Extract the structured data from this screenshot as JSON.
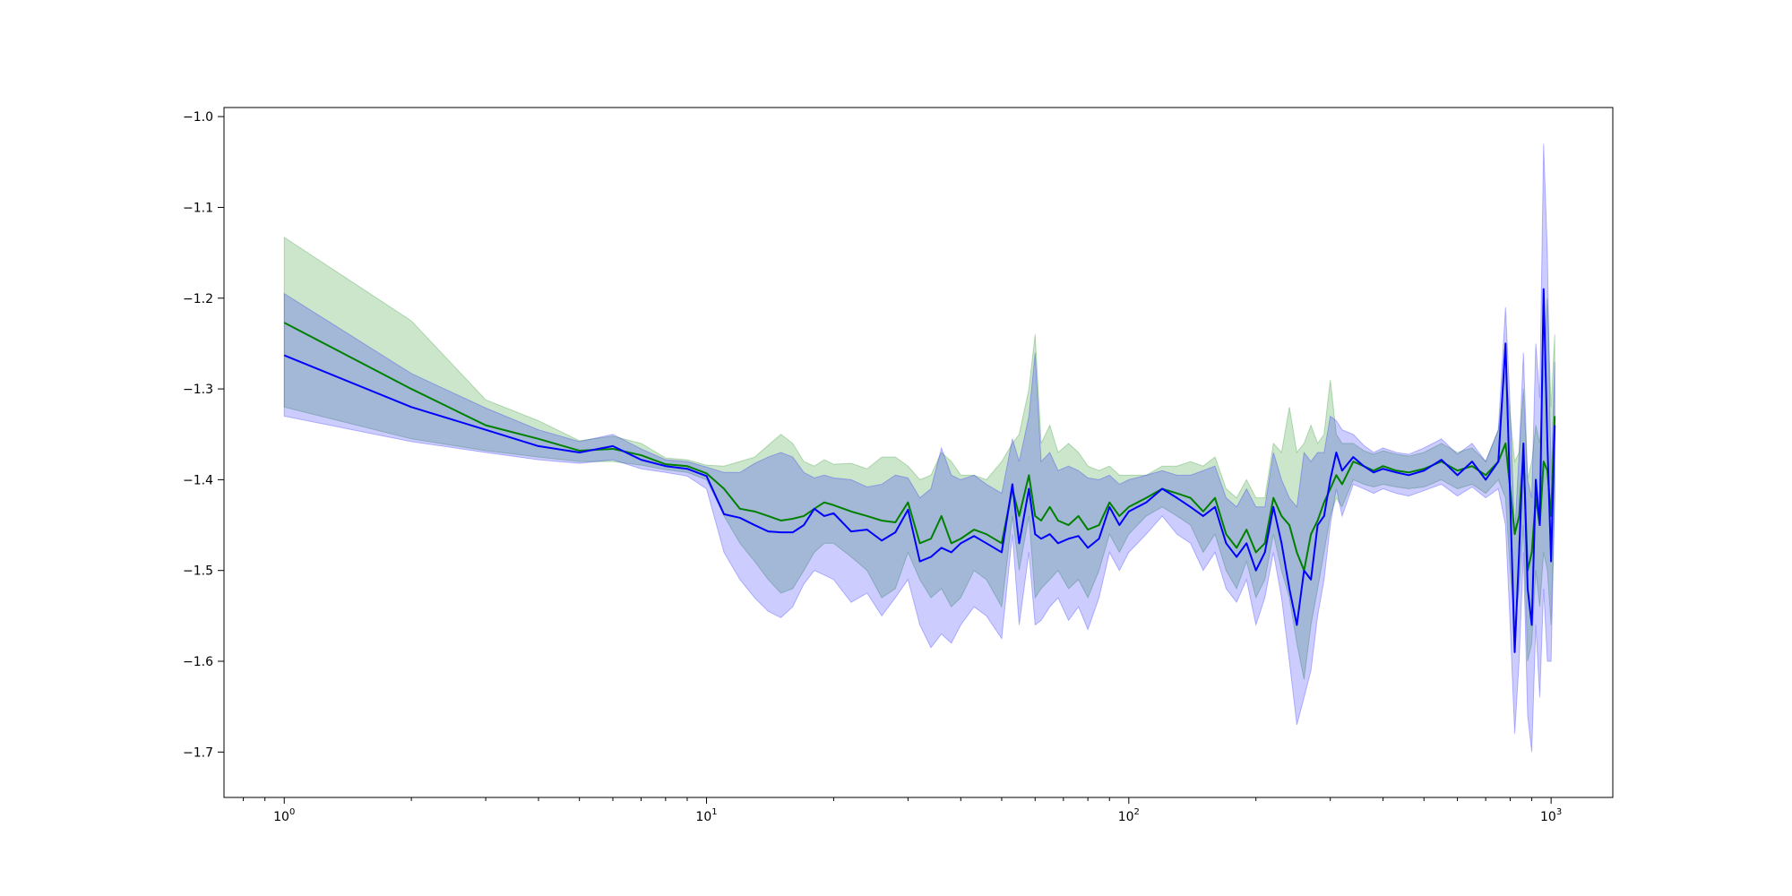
{
  "chart_data": {
    "type": "line",
    "title": "",
    "xlabel": "",
    "ylabel": "",
    "xscale": "log",
    "xlim": [
      0.72,
      1400
    ],
    "ylim": [
      -1.75,
      -0.99
    ],
    "grid": false,
    "legend": "none",
    "x_ticks": [
      {
        "value": 1,
        "base": "10",
        "exp": "0"
      },
      {
        "value": 10,
        "base": "10",
        "exp": "1"
      },
      {
        "value": 100,
        "base": "10",
        "exp": "2"
      },
      {
        "value": 1000,
        "base": "10",
        "exp": "3"
      }
    ],
    "y_ticks": [
      {
        "value": -1.0,
        "label": "−1.0"
      },
      {
        "value": -1.1,
        "label": "−1.1"
      },
      {
        "value": -1.2,
        "label": "−1.2"
      },
      {
        "value": -1.3,
        "label": "−1.3"
      },
      {
        "value": -1.4,
        "label": "−1.4"
      },
      {
        "value": -1.5,
        "label": "−1.5"
      },
      {
        "value": -1.6,
        "label": "−1.6"
      },
      {
        "value": -1.7,
        "label": "−1.7"
      }
    ],
    "series": [
      {
        "color": "#008000",
        "band_color": "#008000",
        "band_opacity": 0.2,
        "x": [
          1,
          2,
          3,
          4,
          5,
          6,
          7,
          8,
          9,
          10,
          11,
          12,
          13,
          14,
          15,
          16,
          17,
          18,
          19,
          20,
          22,
          24,
          26,
          28,
          30,
          32,
          34,
          36,
          38,
          40,
          43,
          46,
          50,
          53,
          55,
          58,
          60,
          62,
          65,
          68,
          72,
          76,
          80,
          85,
          90,
          95,
          100,
          110,
          120,
          130,
          140,
          150,
          160,
          170,
          180,
          190,
          200,
          210,
          220,
          230,
          240,
          250,
          260,
          270,
          280,
          290,
          300,
          310,
          320,
          340,
          360,
          380,
          400,
          430,
          460,
          500,
          550,
          600,
          650,
          700,
          750,
          780,
          800,
          820,
          840,
          860,
          880,
          900,
          920,
          940,
          960,
          980,
          1000,
          1020
        ],
        "y": [
          -1.227,
          -1.3,
          -1.34,
          -1.355,
          -1.368,
          -1.366,
          -1.373,
          -1.383,
          -1.385,
          -1.393,
          -1.41,
          -1.432,
          -1.435,
          -1.44,
          -1.445,
          -1.443,
          -1.44,
          -1.432,
          -1.425,
          -1.428,
          -1.435,
          -1.44,
          -1.445,
          -1.447,
          -1.425,
          -1.47,
          -1.465,
          -1.44,
          -1.47,
          -1.465,
          -1.455,
          -1.46,
          -1.47,
          -1.41,
          -1.44,
          -1.395,
          -1.44,
          -1.445,
          -1.43,
          -1.445,
          -1.45,
          -1.44,
          -1.455,
          -1.45,
          -1.425,
          -1.44,
          -1.43,
          -1.42,
          -1.41,
          -1.415,
          -1.42,
          -1.435,
          -1.42,
          -1.46,
          -1.475,
          -1.455,
          -1.48,
          -1.47,
          -1.42,
          -1.44,
          -1.45,
          -1.48,
          -1.5,
          -1.46,
          -1.445,
          -1.425,
          -1.41,
          -1.395,
          -1.405,
          -1.38,
          -1.385,
          -1.39,
          -1.385,
          -1.39,
          -1.392,
          -1.388,
          -1.38,
          -1.39,
          -1.385,
          -1.395,
          -1.38,
          -1.36,
          -1.41,
          -1.46,
          -1.44,
          -1.37,
          -1.5,
          -1.48,
          -1.42,
          -1.45,
          -1.38,
          -1.39,
          -1.44,
          -1.33
        ],
        "lower": [
          -1.32,
          -1.355,
          -1.368,
          -1.375,
          -1.38,
          -1.38,
          -1.384,
          -1.389,
          -1.392,
          -1.4,
          -1.44,
          -1.47,
          -1.49,
          -1.51,
          -1.525,
          -1.52,
          -1.5,
          -1.48,
          -1.47,
          -1.47,
          -1.485,
          -1.5,
          -1.53,
          -1.52,
          -1.48,
          -1.51,
          -1.53,
          -1.52,
          -1.54,
          -1.53,
          -1.5,
          -1.51,
          -1.54,
          -1.44,
          -1.5,
          -1.44,
          -1.53,
          -1.52,
          -1.51,
          -1.5,
          -1.52,
          -1.51,
          -1.53,
          -1.5,
          -1.46,
          -1.48,
          -1.46,
          -1.44,
          -1.43,
          -1.44,
          -1.45,
          -1.48,
          -1.46,
          -1.5,
          -1.52,
          -1.49,
          -1.53,
          -1.51,
          -1.46,
          -1.5,
          -1.53,
          -1.58,
          -1.62,
          -1.56,
          -1.52,
          -1.48,
          -1.44,
          -1.42,
          -1.43,
          -1.4,
          -1.405,
          -1.408,
          -1.405,
          -1.408,
          -1.41,
          -1.408,
          -1.4,
          -1.41,
          -1.405,
          -1.415,
          -1.4,
          -1.42,
          -1.5,
          -1.56,
          -1.52,
          -1.45,
          -1.6,
          -1.58,
          -1.5,
          -1.54,
          -1.48,
          -1.5,
          -1.56,
          -1.42
        ],
        "upper": [
          -1.133,
          -1.225,
          -1.312,
          -1.335,
          -1.357,
          -1.352,
          -1.36,
          -1.376,
          -1.378,
          -1.384,
          -1.385,
          -1.38,
          -1.375,
          -1.362,
          -1.35,
          -1.36,
          -1.38,
          -1.385,
          -1.378,
          -1.383,
          -1.382,
          -1.388,
          -1.375,
          -1.375,
          -1.385,
          -1.4,
          -1.395,
          -1.37,
          -1.38,
          -1.395,
          -1.395,
          -1.4,
          -1.38,
          -1.36,
          -1.35,
          -1.3,
          -1.24,
          -1.36,
          -1.34,
          -1.37,
          -1.36,
          -1.37,
          -1.385,
          -1.39,
          -1.385,
          -1.395,
          -1.395,
          -1.395,
          -1.385,
          -1.385,
          -1.38,
          -1.385,
          -1.375,
          -1.41,
          -1.42,
          -1.4,
          -1.42,
          -1.42,
          -1.36,
          -1.37,
          -1.32,
          -1.37,
          -1.36,
          -1.34,
          -1.36,
          -1.35,
          -1.29,
          -1.35,
          -1.36,
          -1.36,
          -1.368,
          -1.372,
          -1.368,
          -1.372,
          -1.374,
          -1.37,
          -1.36,
          -1.37,
          -1.365,
          -1.38,
          -1.345,
          -1.28,
          -1.33,
          -1.38,
          -1.37,
          -1.3,
          -1.4,
          -1.38,
          -1.34,
          -1.36,
          -1.28,
          -1.2,
          -1.32,
          -1.24
        ]
      },
      {
        "color": "#0000ff",
        "band_color": "#0000ff",
        "band_opacity": 0.2,
        "x": [
          1,
          2,
          3,
          4,
          5,
          6,
          7,
          8,
          9,
          10,
          11,
          12,
          13,
          14,
          15,
          16,
          17,
          18,
          19,
          20,
          22,
          24,
          26,
          28,
          30,
          32,
          34,
          36,
          38,
          40,
          43,
          46,
          50,
          53,
          55,
          58,
          60,
          62,
          65,
          68,
          72,
          76,
          80,
          85,
          90,
          95,
          100,
          110,
          120,
          130,
          140,
          150,
          160,
          170,
          180,
          190,
          200,
          210,
          220,
          230,
          240,
          250,
          260,
          270,
          280,
          290,
          300,
          310,
          320,
          340,
          360,
          380,
          400,
          430,
          460,
          500,
          550,
          600,
          650,
          700,
          750,
          780,
          800,
          820,
          840,
          860,
          880,
          900,
          920,
          940,
          960,
          980,
          1000,
          1020
        ],
        "y": [
          -1.263,
          -1.32,
          -1.345,
          -1.363,
          -1.37,
          -1.363,
          -1.378,
          -1.385,
          -1.388,
          -1.396,
          -1.438,
          -1.442,
          -1.45,
          -1.457,
          -1.458,
          -1.458,
          -1.45,
          -1.432,
          -1.44,
          -1.437,
          -1.457,
          -1.455,
          -1.467,
          -1.458,
          -1.433,
          -1.49,
          -1.485,
          -1.475,
          -1.48,
          -1.47,
          -1.462,
          -1.47,
          -1.48,
          -1.405,
          -1.47,
          -1.41,
          -1.46,
          -1.465,
          -1.46,
          -1.47,
          -1.465,
          -1.462,
          -1.475,
          -1.465,
          -1.43,
          -1.45,
          -1.435,
          -1.425,
          -1.41,
          -1.42,
          -1.43,
          -1.44,
          -1.43,
          -1.47,
          -1.485,
          -1.47,
          -1.5,
          -1.48,
          -1.43,
          -1.47,
          -1.52,
          -1.56,
          -1.5,
          -1.51,
          -1.45,
          -1.44,
          -1.4,
          -1.37,
          -1.39,
          -1.375,
          -1.385,
          -1.392,
          -1.388,
          -1.392,
          -1.395,
          -1.39,
          -1.378,
          -1.395,
          -1.38,
          -1.4,
          -1.38,
          -1.25,
          -1.42,
          -1.59,
          -1.48,
          -1.36,
          -1.52,
          -1.56,
          -1.4,
          -1.45,
          -1.19,
          -1.36,
          -1.49,
          -1.34
        ],
        "lower": [
          -1.33,
          -1.358,
          -1.37,
          -1.378,
          -1.382,
          -1.378,
          -1.388,
          -1.392,
          -1.396,
          -1.41,
          -1.48,
          -1.51,
          -1.53,
          -1.545,
          -1.552,
          -1.54,
          -1.515,
          -1.5,
          -1.505,
          -1.51,
          -1.535,
          -1.525,
          -1.55,
          -1.53,
          -1.51,
          -1.56,
          -1.585,
          -1.57,
          -1.58,
          -1.56,
          -1.54,
          -1.55,
          -1.575,
          -1.46,
          -1.56,
          -1.48,
          -1.56,
          -1.555,
          -1.54,
          -1.53,
          -1.555,
          -1.54,
          -1.565,
          -1.53,
          -1.48,
          -1.5,
          -1.48,
          -1.46,
          -1.44,
          -1.46,
          -1.47,
          -1.5,
          -1.48,
          -1.52,
          -1.535,
          -1.51,
          -1.56,
          -1.53,
          -1.48,
          -1.53,
          -1.6,
          -1.67,
          -1.64,
          -1.61,
          -1.55,
          -1.51,
          -1.45,
          -1.41,
          -1.44,
          -1.405,
          -1.41,
          -1.415,
          -1.41,
          -1.415,
          -1.418,
          -1.412,
          -1.405,
          -1.418,
          -1.408,
          -1.42,
          -1.41,
          -1.45,
          -1.56,
          -1.68,
          -1.6,
          -1.48,
          -1.66,
          -1.7,
          -1.56,
          -1.64,
          -1.52,
          -1.6,
          -1.6,
          -1.42
        ],
        "upper": [
          -1.195,
          -1.283,
          -1.321,
          -1.345,
          -1.358,
          -1.35,
          -1.366,
          -1.378,
          -1.38,
          -1.386,
          -1.392,
          -1.392,
          -1.382,
          -1.375,
          -1.37,
          -1.375,
          -1.392,
          -1.398,
          -1.395,
          -1.398,
          -1.4,
          -1.408,
          -1.405,
          -1.395,
          -1.398,
          -1.42,
          -1.41,
          -1.365,
          -1.395,
          -1.4,
          -1.395,
          -1.405,
          -1.415,
          -1.355,
          -1.38,
          -1.33,
          -1.26,
          -1.38,
          -1.37,
          -1.39,
          -1.385,
          -1.39,
          -1.398,
          -1.4,
          -1.395,
          -1.405,
          -1.4,
          -1.395,
          -1.39,
          -1.395,
          -1.395,
          -1.39,
          -1.385,
          -1.42,
          -1.43,
          -1.41,
          -1.43,
          -1.43,
          -1.37,
          -1.4,
          -1.42,
          -1.43,
          -1.37,
          -1.38,
          -1.37,
          -1.37,
          -1.33,
          -1.335,
          -1.345,
          -1.35,
          -1.362,
          -1.37,
          -1.365,
          -1.37,
          -1.372,
          -1.365,
          -1.355,
          -1.372,
          -1.36,
          -1.38,
          -1.345,
          -1.21,
          -1.32,
          -1.46,
          -1.37,
          -1.26,
          -1.4,
          -1.42,
          -1.25,
          -1.31,
          -1.03,
          -1.15,
          -1.4,
          -1.27
        ]
      }
    ]
  }
}
